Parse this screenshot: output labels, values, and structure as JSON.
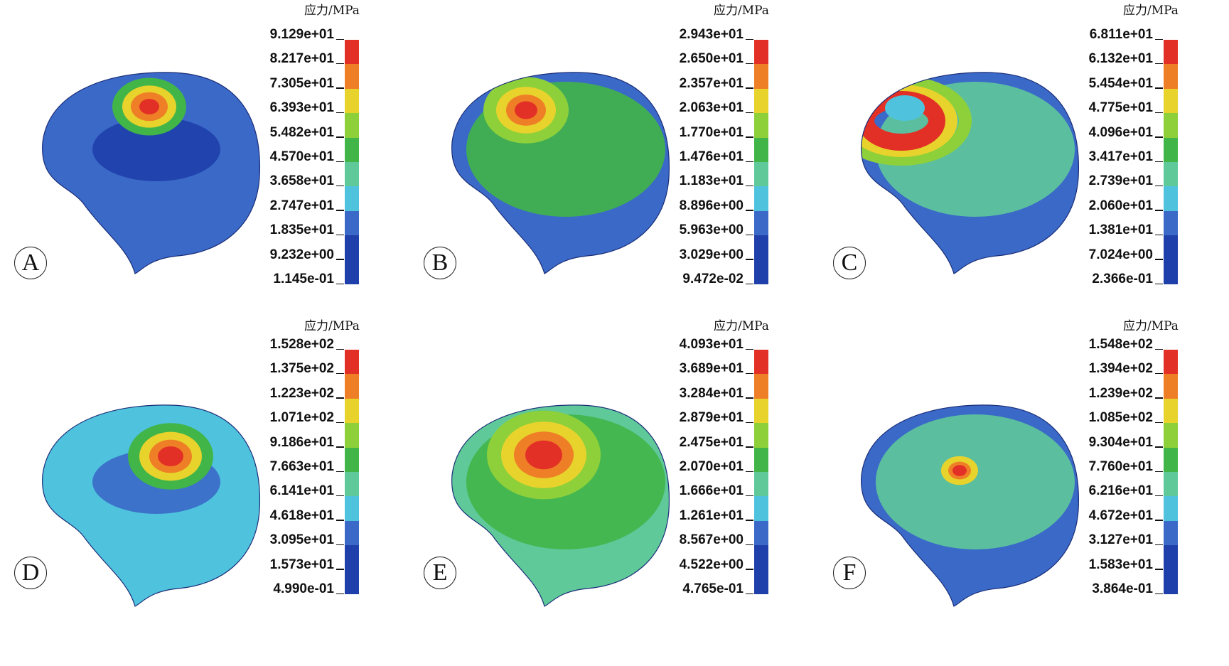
{
  "figure": {
    "unit_label": "应力/MPa",
    "colormap": [
      "#1f3faa",
      "#3a69c8",
      "#4fc3de",
      "#5fc99a",
      "#41b548",
      "#8ed03a",
      "#e7d32c",
      "#ef7f26",
      "#e33026"
    ],
    "panels": [
      {
        "id": "A",
        "label": "A",
        "hotspot": "small focal peak near vertex",
        "scale": [
          "9.129e+01",
          "8.217e+01",
          "7.305e+01",
          "6.393e+01",
          "5.482e+01",
          "4.570e+01",
          "3.658e+01",
          "2.747e+01",
          "1.835e+01",
          "9.232e+00",
          "1.145e-01"
        ]
      },
      {
        "id": "B",
        "label": "B",
        "hotspot": "focal peak near vertex, broad green field",
        "scale": [
          "2.943e+01",
          "2.650e+01",
          "2.357e+01",
          "2.063e+01",
          "1.770e+01",
          "1.476e+01",
          "1.183e+01",
          "8.896e+00",
          "5.963e+00",
          "3.029e+00",
          "9.472e-02"
        ]
      },
      {
        "id": "C",
        "label": "C",
        "hotspot": "ring-shaped peak",
        "scale": [
          "6.811e+01",
          "6.132e+01",
          "5.454e+01",
          "4.775e+01",
          "4.096e+01",
          "3.417e+01",
          "2.739e+01",
          "2.060e+01",
          "1.381e+01",
          "7.024e+00",
          "2.366e-01"
        ]
      },
      {
        "id": "D",
        "label": "D",
        "hotspot": "focal peak at temporal region",
        "scale": [
          "1.528e+02",
          "1.375e+02",
          "1.223e+02",
          "1.071e+02",
          "9.186e+01",
          "7.663e+01",
          "6.141e+01",
          "4.618e+01",
          "3.095e+01",
          "1.573e+01",
          "4.990e-01"
        ]
      },
      {
        "id": "E",
        "label": "E",
        "hotspot": "large central peak",
        "scale": [
          "4.093e+01",
          "3.689e+01",
          "3.284e+01",
          "2.879e+01",
          "2.475e+01",
          "2.070e+01",
          "1.666e+01",
          "1.261e+01",
          "8.567e+00",
          "4.522e+00",
          "4.765e-01"
        ]
      },
      {
        "id": "F",
        "label": "F",
        "hotspot": "small occipital peak",
        "scale": [
          "1.548e+02",
          "1.394e+02",
          "1.239e+02",
          "1.085e+02",
          "9.304e+01",
          "7.760e+01",
          "6.216e+01",
          "4.672e+01",
          "3.127e+01",
          "1.583e+01",
          "3.864e-01"
        ]
      }
    ]
  }
}
